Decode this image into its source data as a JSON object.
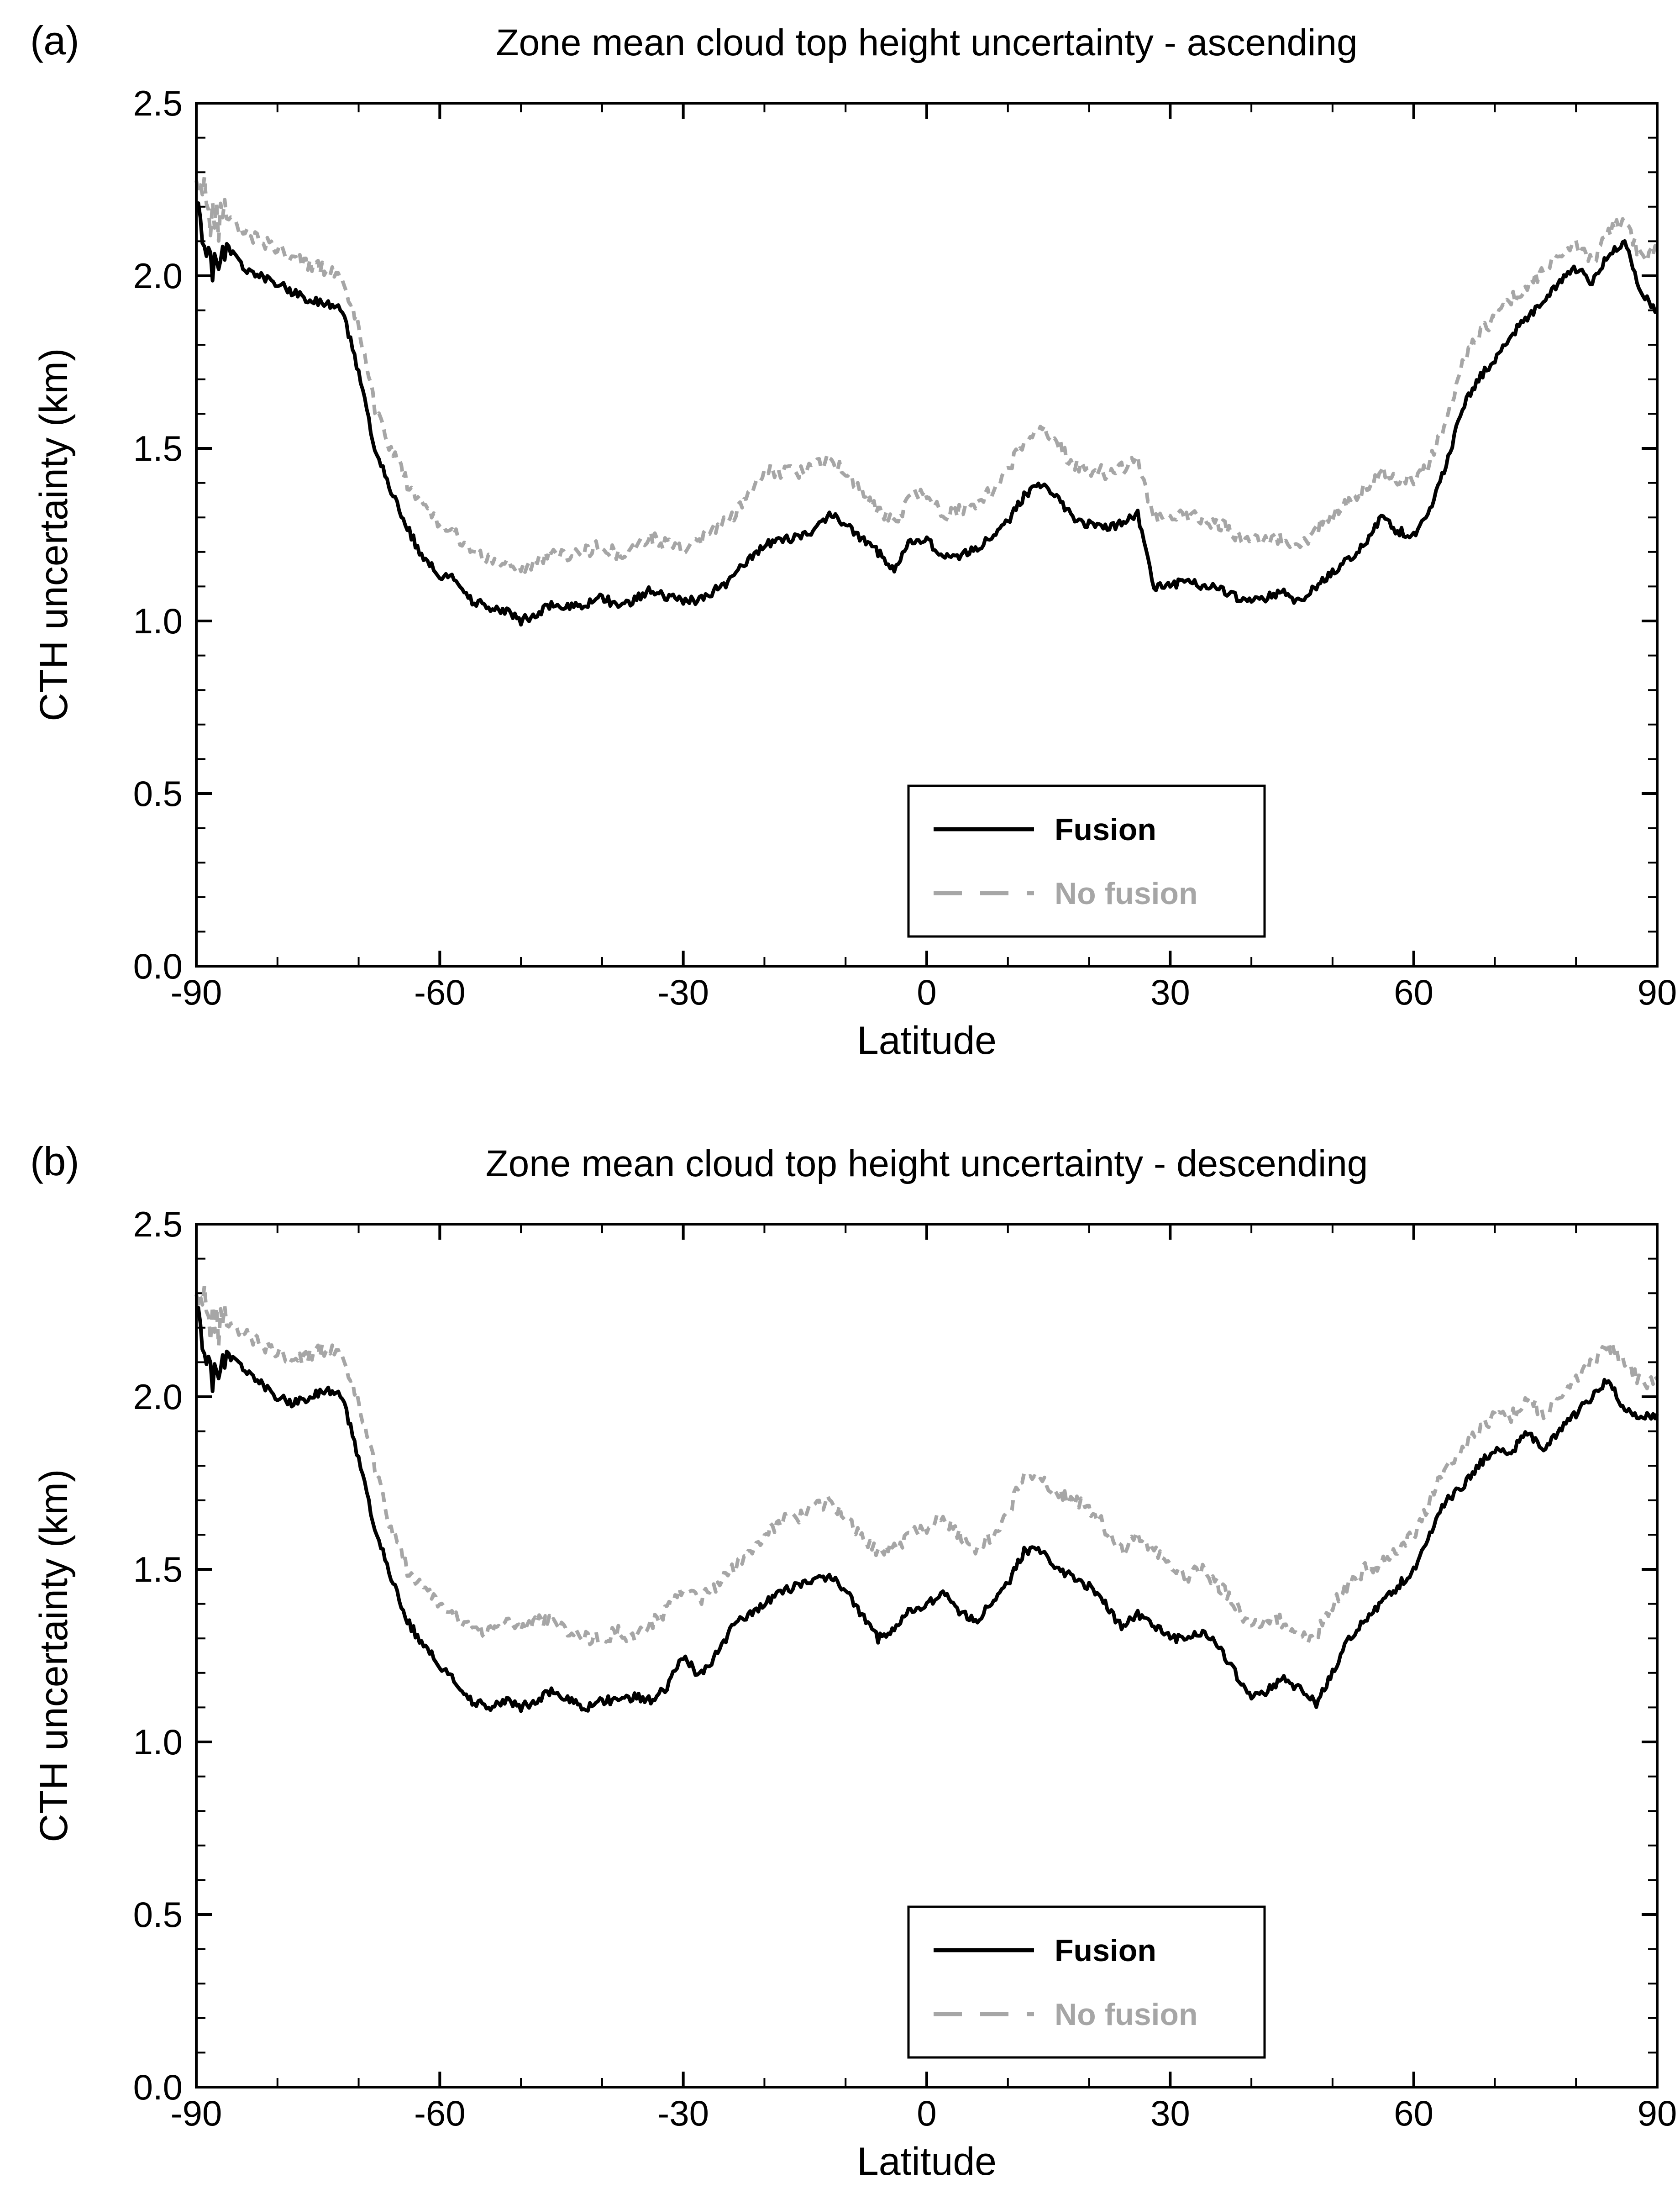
{
  "panels": [
    {
      "panel_label": "(a)"
    },
    {
      "panel_label": "(b)"
    }
  ],
  "chart_data": [
    {
      "type": "line",
      "title": "Zone mean cloud top height uncertainty - ascending",
      "xlabel": "Latitude",
      "ylabel": "CTH uncertainty (km)",
      "xlim": [
        -90,
        90
      ],
      "ylim": [
        0.0,
        2.5
      ],
      "x_major_ticks": [
        -90,
        -60,
        -30,
        0,
        30,
        60,
        90
      ],
      "x_minor_step": 10,
      "y_major_ticks": [
        0.0,
        0.5,
        1.0,
        1.5,
        2.0,
        2.5
      ],
      "y_minor_step": 0.1,
      "grid": false,
      "legend_position": "lower-center-right",
      "x_start": -90,
      "x_step": 2,
      "series": [
        {
          "name": "Fusion",
          "color": "#000000",
          "style": "solid",
          "values": [
            2.2,
            2.02,
            2.08,
            2.02,
            2.0,
            1.98,
            1.95,
            1.93,
            1.92,
            1.9,
            1.72,
            1.5,
            1.38,
            1.27,
            1.18,
            1.13,
            1.12,
            1.06,
            1.04,
            1.03,
            1.0,
            1.02,
            1.05,
            1.04,
            1.05,
            1.07,
            1.04,
            1.06,
            1.09,
            1.07,
            1.06,
            1.06,
            1.09,
            1.12,
            1.18,
            1.22,
            1.24,
            1.24,
            1.26,
            1.31,
            1.28,
            1.24,
            1.2,
            1.15,
            1.23,
            1.24,
            1.18,
            1.19,
            1.21,
            1.24,
            1.29,
            1.36,
            1.4,
            1.36,
            1.3,
            1.28,
            1.27,
            1.28,
            1.31,
            1.1,
            1.1,
            1.12,
            1.1,
            1.1,
            1.07,
            1.06,
            1.07,
            1.08,
            1.05,
            1.1,
            1.14,
            1.18,
            1.22,
            1.3,
            1.26,
            1.25,
            1.32,
            1.45,
            1.62,
            1.7,
            1.76,
            1.83,
            1.88,
            1.93,
            1.98,
            2.02,
            1.98,
            2.06,
            2.1,
            1.95,
            1.9
          ]
        },
        {
          "name": "No fusion",
          "color": "#a6a6a6",
          "style": "dashed",
          "values": [
            2.3,
            2.15,
            2.18,
            2.12,
            2.1,
            2.08,
            2.05,
            2.03,
            2.02,
            2.0,
            1.85,
            1.62,
            1.5,
            1.4,
            1.33,
            1.28,
            1.25,
            1.2,
            1.18,
            1.17,
            1.15,
            1.17,
            1.2,
            1.19,
            1.2,
            1.22,
            1.19,
            1.21,
            1.24,
            1.22,
            1.21,
            1.23,
            1.27,
            1.3,
            1.37,
            1.44,
            1.43,
            1.43,
            1.45,
            1.47,
            1.43,
            1.38,
            1.32,
            1.28,
            1.36,
            1.37,
            1.3,
            1.32,
            1.34,
            1.38,
            1.44,
            1.52,
            1.56,
            1.52,
            1.45,
            1.44,
            1.43,
            1.44,
            1.47,
            1.3,
            1.29,
            1.31,
            1.29,
            1.28,
            1.25,
            1.23,
            1.23,
            1.24,
            1.21,
            1.27,
            1.31,
            1.34,
            1.38,
            1.44,
            1.4,
            1.41,
            1.46,
            1.58,
            1.74,
            1.83,
            1.88,
            1.93,
            1.97,
            2.02,
            2.06,
            2.09,
            2.04,
            2.13,
            2.16,
            2.05,
            2.08
          ]
        }
      ]
    },
    {
      "type": "line",
      "title": "Zone mean cloud top height uncertainty - descending",
      "xlabel": "Latitude",
      "ylabel": "CTH uncertainty (km)",
      "xlim": [
        -90,
        90
      ],
      "ylim": [
        0.0,
        2.5
      ],
      "x_major_ticks": [
        -90,
        -60,
        -30,
        0,
        30,
        60,
        90
      ],
      "x_minor_step": 10,
      "y_major_ticks": [
        0.0,
        0.5,
        1.0,
        1.5,
        2.0,
        2.5
      ],
      "y_minor_step": 0.1,
      "grid": false,
      "legend_position": "lower-center-right",
      "x_start": -90,
      "x_step": 2,
      "series": [
        {
          "name": "Fusion",
          "color": "#000000",
          "style": "solid",
          "values": [
            2.25,
            2.05,
            2.12,
            2.08,
            2.04,
            2.0,
            1.98,
            2.0,
            2.02,
            2.0,
            1.82,
            1.62,
            1.48,
            1.35,
            1.28,
            1.22,
            1.17,
            1.12,
            1.1,
            1.12,
            1.1,
            1.12,
            1.15,
            1.12,
            1.1,
            1.12,
            1.12,
            1.13,
            1.12,
            1.16,
            1.25,
            1.19,
            1.25,
            1.33,
            1.37,
            1.4,
            1.44,
            1.45,
            1.47,
            1.48,
            1.44,
            1.37,
            1.3,
            1.33,
            1.38,
            1.4,
            1.43,
            1.38,
            1.35,
            1.4,
            1.46,
            1.55,
            1.56,
            1.5,
            1.48,
            1.45,
            1.4,
            1.33,
            1.37,
            1.34,
            1.3,
            1.3,
            1.32,
            1.28,
            1.2,
            1.13,
            1.15,
            1.18,
            1.15,
            1.11,
            1.2,
            1.3,
            1.35,
            1.4,
            1.45,
            1.5,
            1.6,
            1.7,
            1.74,
            1.8,
            1.85,
            1.84,
            1.9,
            1.85,
            1.9,
            1.95,
            2.0,
            2.05,
            1.96,
            1.94,
            1.95
          ]
        },
        {
          "name": "No fusion",
          "color": "#a6a6a6",
          "style": "dashed",
          "values": [
            2.32,
            2.2,
            2.22,
            2.18,
            2.15,
            2.13,
            2.1,
            2.12,
            2.14,
            2.13,
            1.98,
            1.8,
            1.62,
            1.5,
            1.44,
            1.4,
            1.36,
            1.33,
            1.32,
            1.35,
            1.33,
            1.35,
            1.35,
            1.32,
            1.3,
            1.3,
            1.32,
            1.3,
            1.34,
            1.38,
            1.45,
            1.41,
            1.45,
            1.5,
            1.55,
            1.6,
            1.64,
            1.65,
            1.68,
            1.7,
            1.65,
            1.6,
            1.55,
            1.56,
            1.6,
            1.62,
            1.65,
            1.6,
            1.56,
            1.6,
            1.66,
            1.78,
            1.76,
            1.72,
            1.7,
            1.68,
            1.62,
            1.55,
            1.6,
            1.56,
            1.5,
            1.48,
            1.5,
            1.45,
            1.4,
            1.33,
            1.35,
            1.35,
            1.3,
            1.31,
            1.4,
            1.45,
            1.5,
            1.52,
            1.55,
            1.6,
            1.7,
            1.8,
            1.84,
            1.9,
            1.95,
            1.94,
            2.0,
            1.95,
            2.0,
            2.05,
            2.1,
            2.15,
            2.1,
            2.04,
            2.05
          ]
        }
      ]
    }
  ]
}
